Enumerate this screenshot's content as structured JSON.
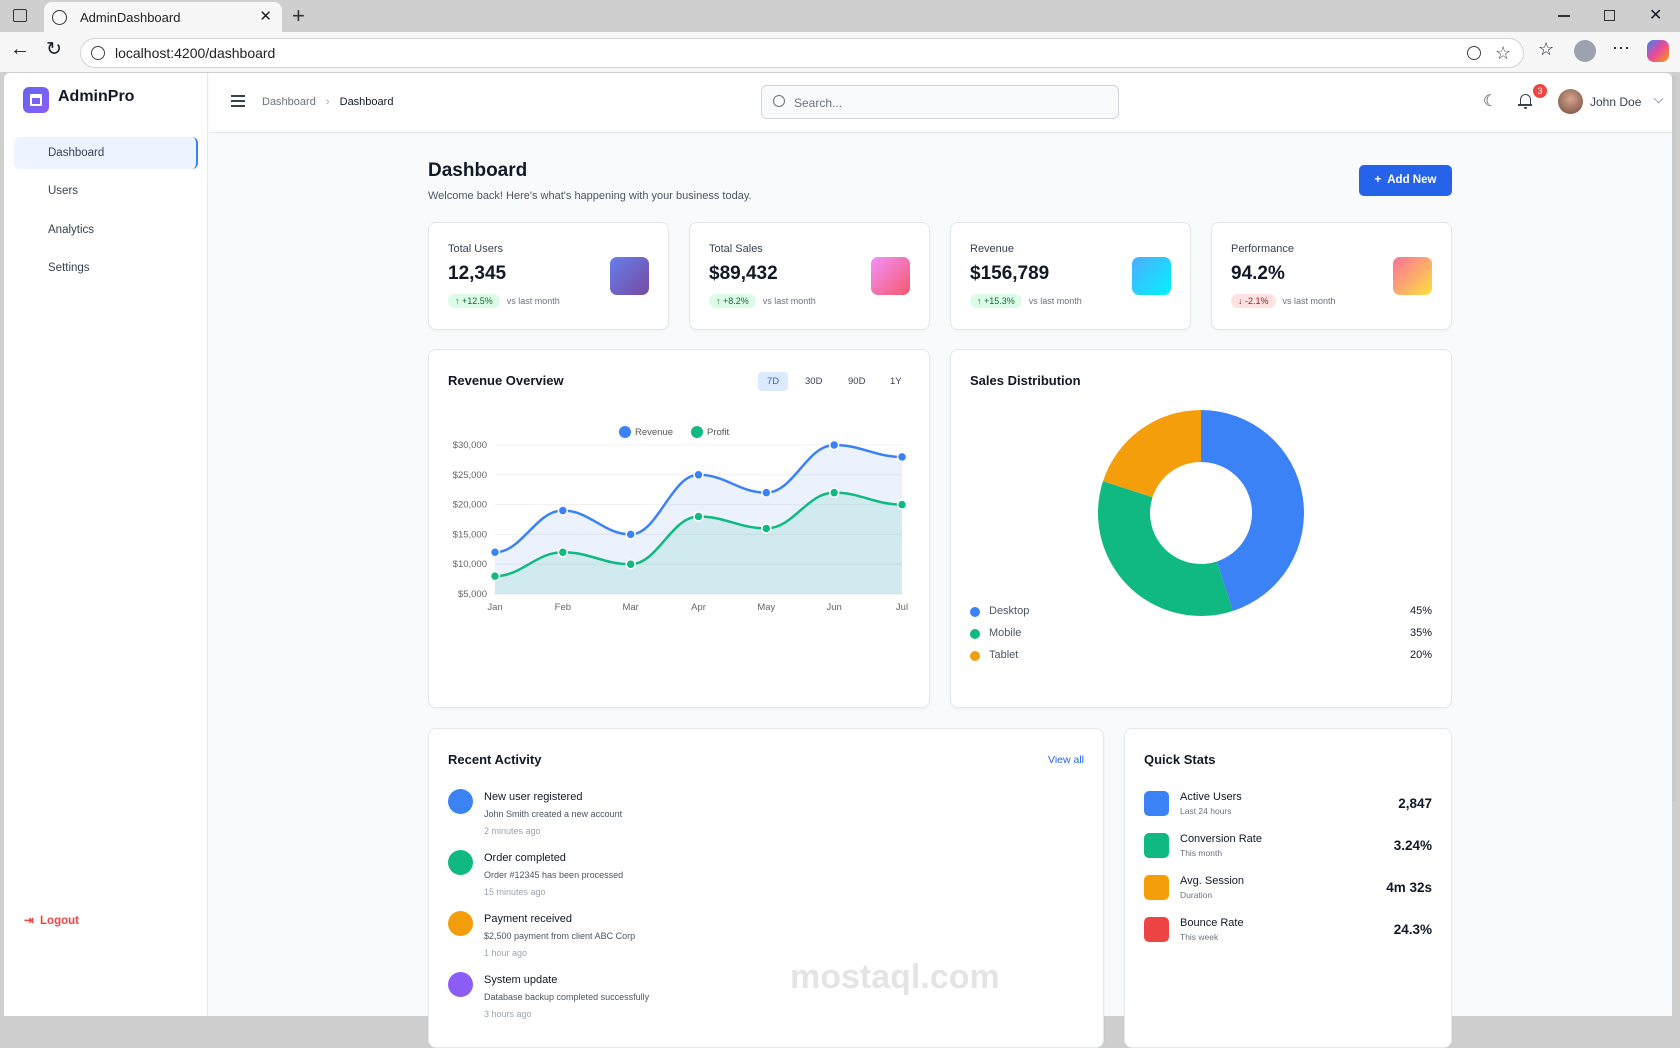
{
  "browser": {
    "tab_title": "AdminDashboard",
    "url": "localhost:4200/dashboard"
  },
  "sidebar": {
    "brand": "AdminPro",
    "items": [
      {
        "label": "Dashboard",
        "active": true
      },
      {
        "label": "Users"
      },
      {
        "label": "Analytics"
      },
      {
        "label": "Settings"
      }
    ],
    "logout": "Logout"
  },
  "header": {
    "breadcrumb": [
      "Dashboard",
      "Dashboard"
    ],
    "search_placeholder": "Search...",
    "notifications": "3",
    "user": "John Doe"
  },
  "page": {
    "title": "Dashboard",
    "subtitle": "Welcome back! Here's what's happening with your business today.",
    "add_button": "Add New"
  },
  "stats": [
    {
      "label": "Total Users",
      "value": "12,345",
      "change": "+12.5%",
      "trend": "up",
      "note": "vs last month",
      "colors": [
        "#667eea",
        "#764ba2"
      ]
    },
    {
      "label": "Total Sales",
      "value": "$89,432",
      "change": "+8.2%",
      "trend": "up",
      "note": "vs last month",
      "colors": [
        "#f093fb",
        "#f5576c"
      ]
    },
    {
      "label": "Revenue",
      "value": "$156,789",
      "change": "+15.3%",
      "trend": "up",
      "note": "vs last month",
      "colors": [
        "#4facfe",
        "#00f2fe"
      ]
    },
    {
      "label": "Performance",
      "value": "94.2%",
      "change": "-2.1%",
      "trend": "down",
      "note": "vs last month",
      "colors": [
        "#fa709a",
        "#fee140"
      ]
    }
  ],
  "revenue_card": {
    "title": "Revenue Overview",
    "ranges": [
      "7D",
      "30D",
      "90D",
      "1Y"
    ],
    "selected_range": "7D"
  },
  "sales_card": {
    "title": "Sales Distribution"
  },
  "chart_data": [
    {
      "type": "line",
      "area": true,
      "categories": [
        "Jan",
        "Feb",
        "Mar",
        "Apr",
        "May",
        "Jun",
        "Jul"
      ],
      "series": [
        {
          "name": "Revenue",
          "values": [
            12000,
            19000,
            15000,
            25000,
            22000,
            30000,
            28000
          ],
          "color": "#3b82f6"
        },
        {
          "name": "Profit",
          "values": [
            8000,
            12000,
            10000,
            18000,
            16000,
            22000,
            20000
          ],
          "color": "#10b981"
        }
      ],
      "ylim": [
        5000,
        30000
      ],
      "yticks": [
        "$5,000",
        "$10,000",
        "$15,000",
        "$20,000",
        "$25,000",
        "$30,000"
      ],
      "legend": "top",
      "grid": true
    },
    {
      "type": "pie",
      "donut": true,
      "labels": [
        "Desktop",
        "Mobile",
        "Tablet"
      ],
      "values": [
        45,
        35,
        20
      ],
      "display": [
        "45%",
        "35%",
        "20%"
      ],
      "colors": [
        "#3b82f6",
        "#10b981",
        "#f59e0b"
      ],
      "legend": "bottom"
    }
  ],
  "activity": {
    "title": "Recent Activity",
    "view_all": "View all",
    "items": [
      {
        "title": "New user registered",
        "desc": "John Smith created a new account",
        "time": "2 minutes ago",
        "color": "#3b82f6"
      },
      {
        "title": "Order completed",
        "desc": "Order #12345 has been processed",
        "time": "15 minutes ago",
        "color": "#10b981"
      },
      {
        "title": "Payment received",
        "desc": "$2,500 payment from client ABC Corp",
        "time": "1 hour ago",
        "color": "#f59e0b"
      },
      {
        "title": "System update",
        "desc": "Database backup completed successfully",
        "time": "3 hours ago",
        "color": "#8b5cf6"
      }
    ]
  },
  "quick_stats": {
    "title": "Quick Stats",
    "items": [
      {
        "title": "Active Users",
        "sub": "Last 24 hours",
        "value": "2,847",
        "color": "#3b82f6"
      },
      {
        "title": "Conversion Rate",
        "sub": "This month",
        "value": "3.24%",
        "color": "#10b981"
      },
      {
        "title": "Avg. Session",
        "sub": "Duration",
        "value": "4m 32s",
        "color": "#f59e0b"
      },
      {
        "title": "Bounce Rate",
        "sub": "This week",
        "value": "24.3%",
        "color": "#ef4444"
      }
    ]
  },
  "watermark": "mostaql.com"
}
